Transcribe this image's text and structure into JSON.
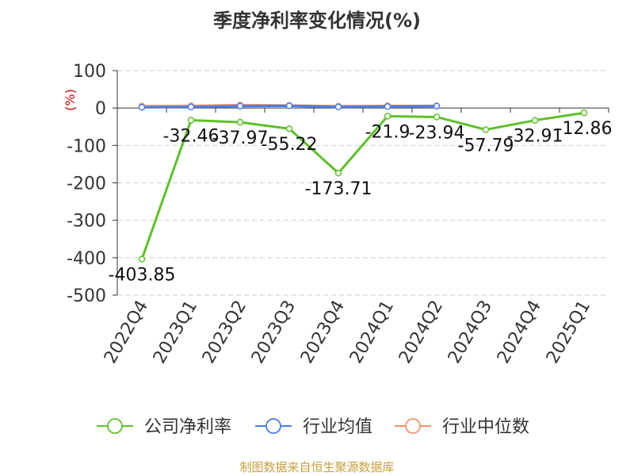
{
  "chart_data": {
    "type": "line",
    "title": "季度净利率变化情况(%)",
    "ylabel": "(%)",
    "categories": [
      "2022Q4",
      "2023Q1",
      "2023Q2",
      "2023Q3",
      "2023Q4",
      "2024Q1",
      "2024Q2",
      "2024Q3",
      "2024Q4",
      "2025Q1"
    ],
    "yticks": [
      100,
      0,
      -100,
      -200,
      -300,
      -400,
      -500
    ],
    "ylim": [
      -500,
      100
    ],
    "grid": true,
    "legend_position": "bottom",
    "series": [
      {
        "name": "公司净利率",
        "color": "#5ec12a",
        "values": [
          -403.85,
          -32.46,
          -37.97,
          -55.22,
          -173.71,
          -21.9,
          -23.94,
          -57.79,
          -32.91,
          -12.86
        ],
        "labels": [
          "-403.85",
          "-32.46",
          "-37.97",
          "-55.22",
          "-173.71",
          "-21.9",
          "-23.94",
          "-57.79",
          "-32.91",
          "-12.86"
        ]
      },
      {
        "name": "行业均值",
        "color": "#4a7de8",
        "values": [
          2,
          3,
          5,
          6,
          3,
          4,
          5,
          null,
          null,
          null
        ]
      },
      {
        "name": "行业中位数",
        "color": "#f0956a",
        "values": [
          5,
          6,
          8,
          7,
          5,
          6,
          6,
          null,
          null,
          null
        ]
      }
    ]
  },
  "source": "制图数据来自恒生聚源数据库"
}
